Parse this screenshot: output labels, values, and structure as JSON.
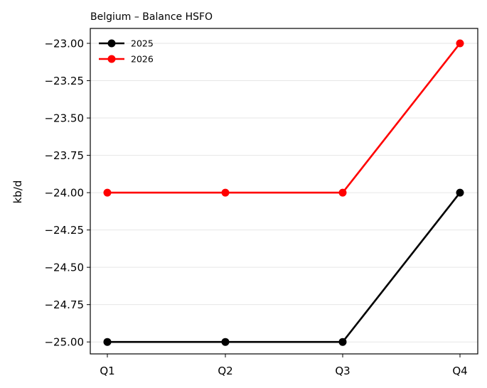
{
  "chart_data": {
    "type": "line",
    "title": "Belgium – Balance HSFO",
    "xlabel": "",
    "ylabel": "kb/d",
    "categories": [
      "Q1",
      "Q2",
      "Q3",
      "Q4"
    ],
    "ylim": [
      -25.08,
      -22.9
    ],
    "yticks": [
      -23.0,
      -23.25,
      -23.5,
      -23.75,
      -24.0,
      -24.25,
      -24.5,
      -24.75,
      -25.0
    ],
    "ytick_labels": [
      "−23.00",
      "−23.25",
      "−23.50",
      "−23.75",
      "−24.00",
      "−24.25",
      "−24.50",
      "−24.75",
      "−25.00"
    ],
    "grid": "horizontal",
    "legend_position": "top-left",
    "series": [
      {
        "name": "2025",
        "color": "#000000",
        "values": [
          -25.0,
          -25.0,
          -25.0,
          -24.0
        ]
      },
      {
        "name": "2026",
        "color": "#ff0000",
        "values": [
          -24.0,
          -24.0,
          -24.0,
          -23.0
        ]
      }
    ]
  }
}
